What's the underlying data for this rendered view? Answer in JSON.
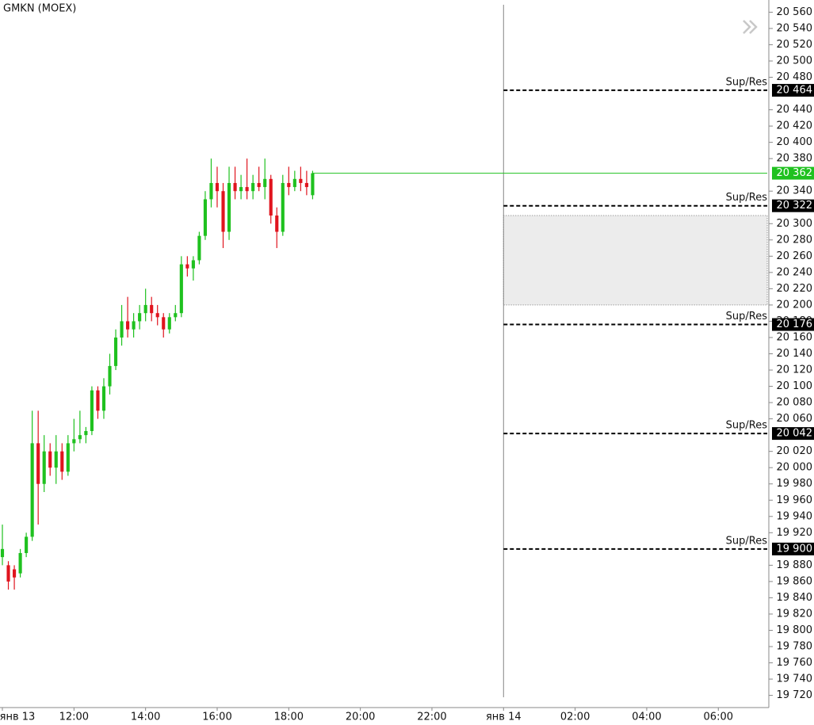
{
  "chart_data": {
    "type": "candlestick",
    "title": "GMKN (MOEX)",
    "x": [
      600,
      610,
      620,
      630,
      640,
      650,
      660,
      670,
      680,
      690,
      700,
      710,
      720,
      730,
      740,
      750,
      760,
      770,
      780,
      790,
      800,
      810,
      820,
      830,
      840,
      850,
      860,
      870,
      880,
      890,
      900,
      910,
      920,
      930,
      940,
      950,
      960,
      970,
      980,
      990,
      1000,
      1010,
      1020,
      1030,
      1040,
      1050,
      1060,
      1070,
      1080,
      1090,
      1100,
      1110,
      1120
    ],
    "open": [
      19890,
      19880,
      19875,
      19870,
      19895,
      19915,
      20030,
      19980,
      20020,
      20000,
      20020,
      19995,
      20030,
      20035,
      20040,
      20045,
      20095,
      20070,
      20100,
      20125,
      20160,
      20180,
      20170,
      20180,
      20190,
      20200,
      20190,
      20185,
      20170,
      20185,
      20190,
      20250,
      20245,
      20255,
      20285,
      20330,
      20350,
      20340,
      20290,
      20350,
      20340,
      20345,
      20340,
      20350,
      20345,
      20355,
      20310,
      20290,
      20350,
      20345,
      20355,
      20350,
      20335
    ],
    "high": [
      19930,
      19885,
      19880,
      19900,
      19920,
      20070,
      20070,
      20040,
      20030,
      20040,
      20030,
      20040,
      20060,
      20070,
      20050,
      20100,
      20100,
      20110,
      20140,
      20170,
      20200,
      20210,
      20190,
      20200,
      20220,
      20210,
      20200,
      20190,
      20190,
      20200,
      20260,
      20260,
      20260,
      20290,
      20340,
      20380,
      20370,
      20350,
      20370,
      20370,
      20360,
      20380,
      20360,
      20370,
      20380,
      20360,
      20320,
      20360,
      20370,
      20365,
      20370,
      20365,
      20365
    ],
    "low": [
      19880,
      19850,
      19850,
      19865,
      19890,
      19910,
      19930,
      19970,
      19990,
      19980,
      19985,
      19990,
      20020,
      20030,
      20030,
      20040,
      20060,
      20060,
      20090,
      20120,
      20150,
      20160,
      20160,
      20170,
      20180,
      20180,
      20175,
      20160,
      20165,
      20180,
      20185,
      20235,
      20230,
      20250,
      20280,
      20320,
      20320,
      20270,
      20280,
      20330,
      20330,
      20330,
      20330,
      20340,
      20330,
      20300,
      20270,
      20285,
      20335,
      20340,
      20340,
      20335,
      20330
    ],
    "close": [
      19900,
      19860,
      19865,
      19895,
      19915,
      20030,
      19980,
      20020,
      20000,
      20020,
      19995,
      20030,
      20035,
      20040,
      20045,
      20095,
      20070,
      20100,
      20125,
      20160,
      20180,
      20170,
      20180,
      20190,
      20200,
      20190,
      20185,
      20170,
      20185,
      20190,
      20250,
      20245,
      20255,
      20285,
      20330,
      20350,
      20340,
      20290,
      20350,
      20340,
      20345,
      20340,
      20350,
      20345,
      20355,
      20310,
      20290,
      20350,
      20345,
      20355,
      20350,
      20345,
      20362
    ],
    "up_color": "#1fc11f",
    "down_color": "#e0141e",
    "xlim": [
      596,
      1882
    ],
    "xticks": [
      {
        "value": 600,
        "label": "янв 13"
      },
      {
        "value": 720,
        "label": "12:00"
      },
      {
        "value": 840,
        "label": "14:00"
      },
      {
        "value": 960,
        "label": "16:00"
      },
      {
        "value": 1080,
        "label": "18:00"
      },
      {
        "value": 1200,
        "label": "20:00"
      },
      {
        "value": 1320,
        "label": "22:00"
      },
      {
        "value": 1440,
        "label": "янв 14"
      },
      {
        "value": 1560,
        "label": "02:00"
      },
      {
        "value": 1680,
        "label": "04:00"
      },
      {
        "value": 1800,
        "label": "06:00"
      }
    ],
    "ylim": [
      19705,
      20575
    ],
    "yticks": [
      {
        "value": 20560,
        "label": "20 560"
      },
      {
        "value": 20540,
        "label": "20 540"
      },
      {
        "value": 20520,
        "label": "20 520"
      },
      {
        "value": 20500,
        "label": "20 500"
      },
      {
        "value": 20480,
        "label": "20 480"
      },
      {
        "value": 20440,
        "label": "20 440"
      },
      {
        "value": 20420,
        "label": "20 420"
      },
      {
        "value": 20400,
        "label": "20 400"
      },
      {
        "value": 20380,
        "label": "20 380"
      },
      {
        "value": 20340,
        "label": "20 340"
      },
      {
        "value": 20300,
        "label": "20 300"
      },
      {
        "value": 20280,
        "label": "20 280"
      },
      {
        "value": 20260,
        "label": "20 260"
      },
      {
        "value": 20240,
        "label": "20 240"
      },
      {
        "value": 20220,
        "label": "20 220"
      },
      {
        "value": 20200,
        "label": "20 200"
      },
      {
        "value": 20180,
        "label": "20 180"
      },
      {
        "value": 20160,
        "label": "20 160"
      },
      {
        "value": 20140,
        "label": "20 140"
      },
      {
        "value": 20120,
        "label": "20 120"
      },
      {
        "value": 20100,
        "label": "20 100"
      },
      {
        "value": 20080,
        "label": "20 080"
      },
      {
        "value": 20060,
        "label": "20 060"
      },
      {
        "value": 20020,
        "label": "20 020"
      },
      {
        "value": 20000,
        "label": "20 000"
      },
      {
        "value": 19980,
        "label": "19 980"
      },
      {
        "value": 19960,
        "label": "19 960"
      },
      {
        "value": 19940,
        "label": "19 940"
      },
      {
        "value": 19920,
        "label": "19 920"
      },
      {
        "value": 19880,
        "label": "19 880"
      },
      {
        "value": 19860,
        "label": "19 860"
      },
      {
        "value": 19840,
        "label": "19 840"
      },
      {
        "value": 19820,
        "label": "19 820"
      },
      {
        "value": 19800,
        "label": "19 800"
      },
      {
        "value": 19780,
        "label": "19 780"
      },
      {
        "value": 19760,
        "label": "19 760"
      },
      {
        "value": 19740,
        "label": "19 740"
      },
      {
        "value": 19720,
        "label": "19 720"
      }
    ],
    "current_price": {
      "value": 20362,
      "label": "20 362",
      "color": "#1fc11f"
    },
    "levels": [
      {
        "name": "Sup/Res",
        "value": 20464,
        "label": "20 464"
      },
      {
        "name": "Sup/Res",
        "value": 20322,
        "label": "20 322"
      },
      {
        "name": "Sup/Res",
        "value": 20176,
        "label": "20 176"
      },
      {
        "name": "Sup/Res",
        "value": 20042,
        "label": "20 042"
      },
      {
        "name": "Sup/Res",
        "value": 19900,
        "label": "19 900"
      }
    ],
    "zone": [
      20200,
      20310
    ],
    "day_separator": 1440
  }
}
